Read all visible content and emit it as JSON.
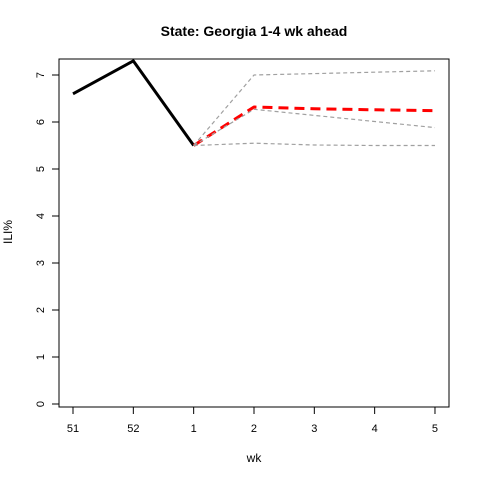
{
  "chart_data": {
    "type": "line",
    "title": "State: Georgia 1-4 wk ahead",
    "xlabel": "wk",
    "ylabel": "ILI%",
    "x_ticks": [
      "51",
      "52",
      "1",
      "2",
      "3",
      "4",
      "5"
    ],
    "y_ticks": [
      "0",
      "1",
      "2",
      "3",
      "4",
      "5",
      "6",
      "7"
    ],
    "ylim": [
      0,
      7.3
    ],
    "grid": false,
    "series": [
      {
        "role": "observed",
        "color": "#000000",
        "style": "solid",
        "points": [
          {
            "x": "51",
            "y": 6.6
          },
          {
            "x": "52",
            "y": 7.3
          },
          {
            "x": "1",
            "y": 5.5
          }
        ]
      },
      {
        "role": "forecast-point",
        "color": "#ff0000",
        "style": "dashed",
        "points": [
          {
            "x": "1",
            "y": 5.5
          },
          {
            "x": "2",
            "y": 6.32
          },
          {
            "x": "3",
            "y": 6.28
          },
          {
            "x": "4",
            "y": 6.26
          },
          {
            "x": "5",
            "y": 6.24
          }
        ]
      },
      {
        "role": "forecast-upper",
        "color": "#a0a0a0",
        "style": "dashed",
        "points": [
          {
            "x": "1",
            "y": 5.5
          },
          {
            "x": "2",
            "y": 7.0
          },
          {
            "x": "3",
            "y": 7.03
          },
          {
            "x": "4",
            "y": 7.06
          },
          {
            "x": "5",
            "y": 7.09
          }
        ]
      },
      {
        "role": "forecast-mid",
        "color": "#a0a0a0",
        "style": "dashed",
        "points": [
          {
            "x": "1",
            "y": 5.5
          },
          {
            "x": "2",
            "y": 6.27
          },
          {
            "x": "3",
            "y": 6.14
          },
          {
            "x": "4",
            "y": 6.01
          },
          {
            "x": "5",
            "y": 5.88
          }
        ]
      },
      {
        "role": "forecast-lower",
        "color": "#a0a0a0",
        "style": "dashed",
        "points": [
          {
            "x": "1",
            "y": 5.5
          },
          {
            "x": "2",
            "y": 5.55
          },
          {
            "x": "3",
            "y": 5.51
          },
          {
            "x": "4",
            "y": 5.5
          },
          {
            "x": "5",
            "y": 5.5
          }
        ]
      }
    ]
  }
}
